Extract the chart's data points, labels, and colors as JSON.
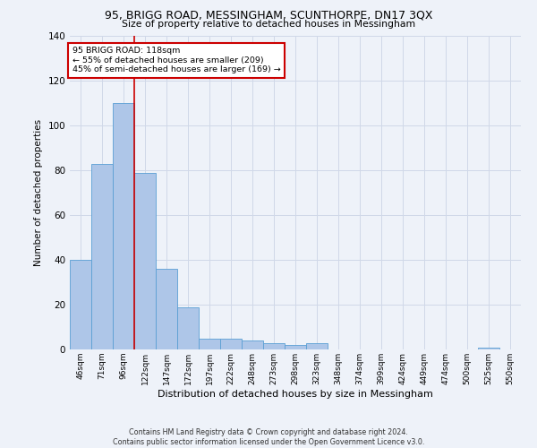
{
  "title1": "95, BRIGG ROAD, MESSINGHAM, SCUNTHORPE, DN17 3QX",
  "title2": "Size of property relative to detached houses in Messingham",
  "xlabel": "Distribution of detached houses by size in Messingham",
  "ylabel": "Number of detached properties",
  "bar_labels": [
    "46sqm",
    "71sqm",
    "96sqm",
    "122sqm",
    "147sqm",
    "172sqm",
    "197sqm",
    "222sqm",
    "248sqm",
    "273sqm",
    "298sqm",
    "323sqm",
    "348sqm",
    "374sqm",
    "399sqm",
    "424sqm",
    "449sqm",
    "474sqm",
    "500sqm",
    "525sqm",
    "550sqm"
  ],
  "bar_values": [
    40,
    83,
    110,
    79,
    36,
    19,
    5,
    5,
    4,
    3,
    2,
    3,
    0,
    0,
    0,
    0,
    0,
    0,
    0,
    1,
    0
  ],
  "bar_color": "#aec6e8",
  "bar_edge_color": "#5a9fd4",
  "grid_color": "#d0d8e8",
  "background_color": "#eef2f9",
  "vline_x": 2.5,
  "vline_color": "#cc0000",
  "annotation_line1": "95 BRIGG ROAD: 118sqm",
  "annotation_line2": "← 55% of detached houses are smaller (209)",
  "annotation_line3": "45% of semi-detached houses are larger (169) →",
  "annotation_box_color": "#ffffff",
  "annotation_box_edge": "#cc0000",
  "ylim": [
    0,
    140
  ],
  "yticks": [
    0,
    20,
    40,
    60,
    80,
    100,
    120,
    140
  ],
  "footer1": "Contains HM Land Registry data © Crown copyright and database right 2024.",
  "footer2": "Contains public sector information licensed under the Open Government Licence v3.0."
}
